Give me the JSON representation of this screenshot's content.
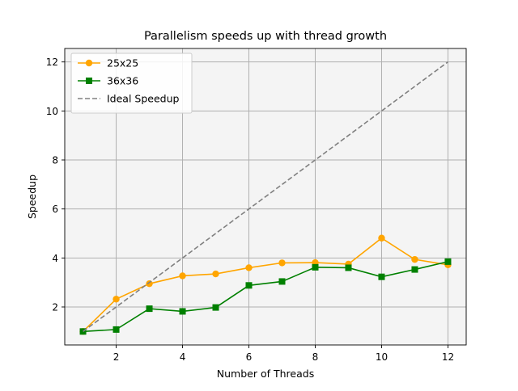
{
  "chart_data": {
    "type": "line",
    "title": "Parallelism speeds up with thread growth",
    "xlabel": "Number of Threads",
    "ylabel": "Speedup",
    "xlim": [
      0.45,
      12.55
    ],
    "ylim": [
      0.45,
      12.55
    ],
    "xticks": [
      2,
      4,
      6,
      8,
      10,
      12
    ],
    "yticks": [
      2,
      4,
      6,
      8,
      10,
      12
    ],
    "grid": true,
    "plot_background": "#f4f4f4",
    "legend_position": "top-left",
    "x": [
      1,
      2,
      3,
      4,
      5,
      6,
      7,
      8,
      9,
      10,
      11,
      12
    ],
    "series": [
      {
        "name": "25x25",
        "color": "#ffa500",
        "marker": "circle",
        "line_style": "solid",
        "values": [
          1.0,
          2.32,
          2.95,
          3.27,
          3.35,
          3.6,
          3.8,
          3.81,
          3.75,
          4.81,
          3.94,
          3.72
        ]
      },
      {
        "name": "36x36",
        "color": "#008000",
        "marker": "square",
        "line_style": "solid",
        "values": [
          1.0,
          1.08,
          1.93,
          1.82,
          1.98,
          2.88,
          3.04,
          3.62,
          3.6,
          3.23,
          3.53,
          3.85
        ]
      },
      {
        "name": "Ideal Speedup",
        "color": "#808080",
        "marker": "none",
        "line_style": "dashed",
        "values": [
          1,
          2,
          3,
          4,
          5,
          6,
          7,
          8,
          9,
          10,
          11,
          12
        ]
      }
    ]
  }
}
